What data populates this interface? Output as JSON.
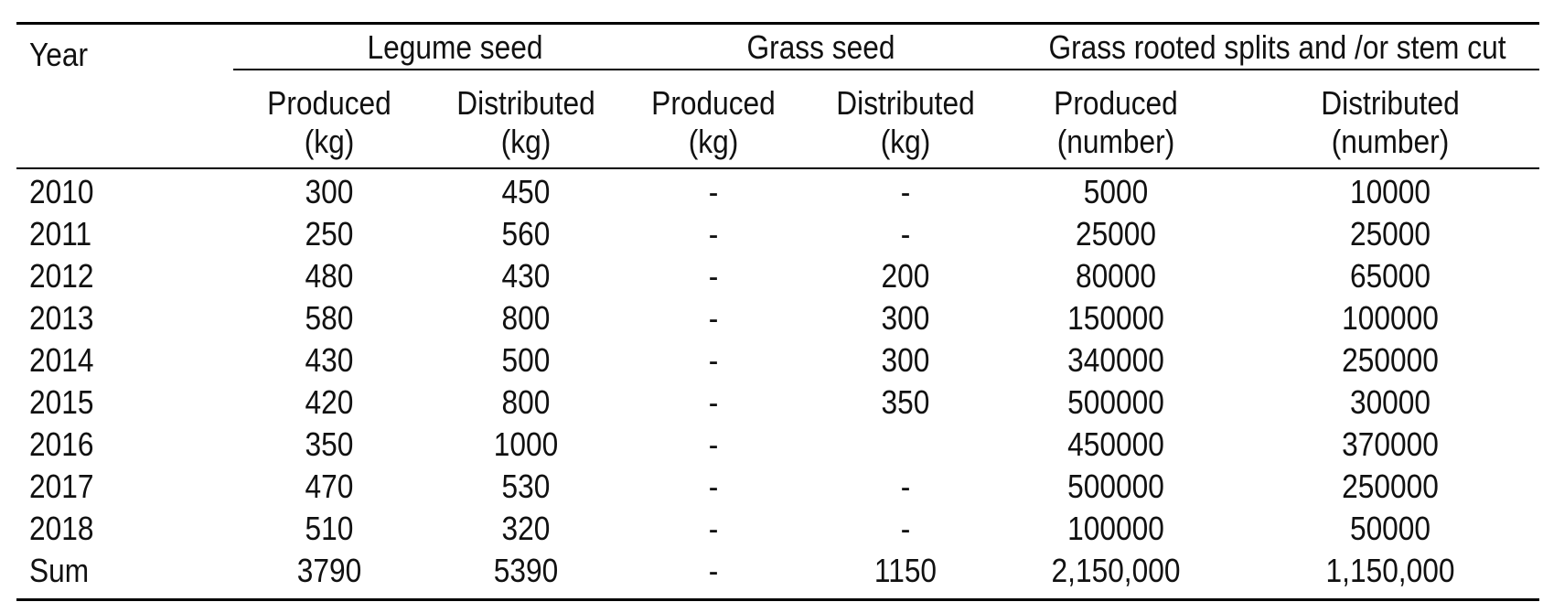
{
  "table": {
    "year_header": "Year",
    "groups": [
      {
        "label": "Legume seed"
      },
      {
        "label": "Grass seed"
      },
      {
        "label": "Grass rooted splits and /or stem cut"
      }
    ],
    "subheaders": [
      {
        "line1": "Produced",
        "line2": "(kg)"
      },
      {
        "line1": "Distributed",
        "line2": "(kg)"
      },
      {
        "line1": "Produced",
        "line2": "(kg)"
      },
      {
        "line1": "Distributed",
        "line2": "(kg)"
      },
      {
        "line1": "Produced",
        "line2": "(number)"
      },
      {
        "line1": "Distributed",
        "line2": "(number)"
      }
    ],
    "rows": [
      {
        "year": "2010",
        "values": [
          "300",
          "450",
          "-",
          "-",
          "5000",
          "10000"
        ]
      },
      {
        "year": "2011",
        "values": [
          "250",
          "560",
          "-",
          "-",
          "25000",
          "25000"
        ]
      },
      {
        "year": "2012",
        "values": [
          "480",
          "430",
          "-",
          "200",
          "80000",
          "65000"
        ]
      },
      {
        "year": "2013",
        "values": [
          "580",
          "800",
          "-",
          "300",
          "150000",
          "100000"
        ]
      },
      {
        "year": "2014",
        "values": [
          "430",
          "500",
          "-",
          "300",
          "340000",
          "250000"
        ]
      },
      {
        "year": "2015",
        "values": [
          "420",
          "800",
          "-",
          "350",
          "500000",
          "30000"
        ]
      },
      {
        "year": "2016",
        "values": [
          "350",
          "1000",
          "-",
          "",
          "450000",
          "370000"
        ]
      },
      {
        "year": "2017",
        "values": [
          "470",
          "530",
          "-",
          "-",
          "500000",
          "250000"
        ]
      },
      {
        "year": "2018",
        "values": [
          "510",
          "320",
          "-",
          "-",
          "100000",
          "50000"
        ]
      },
      {
        "year": "Sum",
        "values": [
          "3790",
          "5390",
          "-",
          "1150",
          "2,150,000",
          "1,150,000"
        ]
      }
    ]
  }
}
